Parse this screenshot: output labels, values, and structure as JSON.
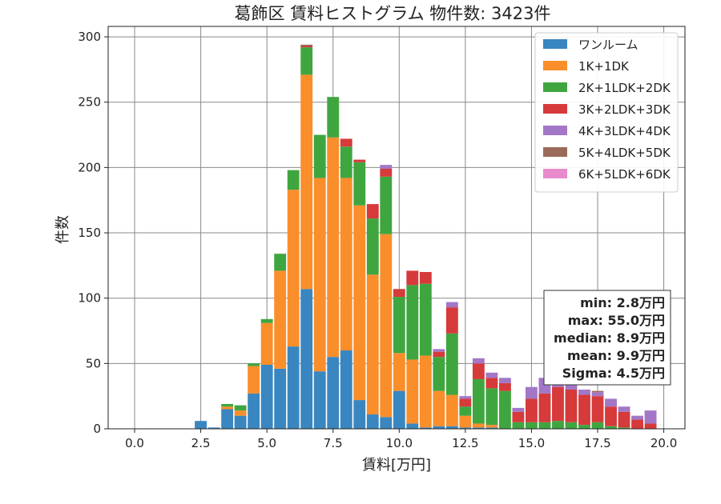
{
  "chart_data": {
    "type": "bar",
    "stacked": true,
    "title": "葛飾区 賃料ヒストグラム 物件数: 3423件",
    "xlabel": "賃料[万円]",
    "ylabel": "件数",
    "xlim": [
      -1.0,
      20.8
    ],
    "ylim": [
      0,
      308
    ],
    "xticks": [
      0.0,
      2.5,
      5.0,
      7.5,
      10.0,
      12.5,
      15.0,
      17.5,
      20.0
    ],
    "xtick_labels": [
      "0.0",
      "2.5",
      "5.0",
      "7.5",
      "10.0",
      "12.5",
      "15.0",
      "17.5",
      "20.0"
    ],
    "yticks": [
      0,
      50,
      100,
      150,
      200,
      250,
      300
    ],
    "ytick_labels": [
      "0",
      "50",
      "100",
      "150",
      "200",
      "250",
      "300"
    ],
    "grid": true,
    "legend_position": "top-right",
    "bin_width": 0.5,
    "x": [
      2.5,
      3.0,
      3.5,
      4.0,
      4.5,
      5.0,
      5.5,
      6.0,
      6.5,
      7.0,
      7.5,
      8.0,
      8.5,
      9.0,
      9.5,
      10.0,
      10.5,
      11.0,
      11.5,
      12.0,
      12.5,
      13.0,
      13.5,
      14.0,
      14.5,
      15.0,
      15.5,
      16.0,
      16.5,
      17.0,
      17.5,
      18.0,
      18.5,
      19.0,
      19.5
    ],
    "series": [
      {
        "name": "ワンルーム",
        "color": "#3a86c0",
        "values": [
          6,
          1,
          15,
          10,
          27,
          49,
          46,
          63,
          107,
          44,
          55,
          60,
          22,
          11,
          9,
          29,
          4,
          1,
          2,
          2,
          1,
          1,
          1,
          0,
          0,
          0,
          0,
          0,
          0,
          0,
          0,
          0,
          0,
          0,
          0
        ]
      },
      {
        "name": "1K+1DK",
        "color": "#f98e2b",
        "values": [
          0,
          0,
          2,
          4,
          21,
          32,
          75,
          120,
          164,
          148,
          168,
          132,
          149,
          107,
          140,
          29,
          49,
          55,
          27,
          24,
          9,
          3,
          2,
          0,
          0,
          0,
          0,
          0,
          0,
          0,
          0,
          0,
          0,
          0,
          0
        ]
      },
      {
        "name": "2K+1LDK+2DK",
        "color": "#3fa63f",
        "values": [
          0,
          0,
          2,
          4,
          2,
          3,
          13,
          15,
          21,
          33,
          31,
          24,
          33,
          43,
          44,
          43,
          57,
          55,
          26,
          47,
          7,
          34,
          28,
          29,
          5,
          5,
          5,
          6,
          5,
          3,
          5,
          2,
          1,
          0,
          0
        ]
      },
      {
        "name": "3K+2LDK+3DK",
        "color": "#d63a3a",
        "values": [
          0,
          0,
          0,
          0,
          0,
          0,
          0,
          0,
          1,
          0,
          0,
          6,
          2,
          11,
          6,
          6,
          11,
          9,
          4,
          20,
          6,
          12,
          8,
          6,
          8,
          18,
          22,
          26,
          25,
          23,
          20,
          15,
          12,
          7,
          4
        ]
      },
      {
        "name": "4K+3LDK+4DK",
        "color": "#a277c7",
        "values": [
          0,
          0,
          0,
          0,
          0,
          0,
          0,
          0,
          0,
          0,
          0,
          0,
          0,
          0,
          3,
          0,
          0,
          0,
          2,
          4,
          2,
          4,
          4,
          4,
          3,
          9,
          12,
          8,
          6,
          4,
          3,
          6,
          4,
          3,
          10
        ]
      },
      {
        "name": "5K+4LDK+5DK",
        "color": "#9b6b5a",
        "values": [
          0,
          0,
          0,
          0,
          0,
          0,
          0,
          0,
          1,
          0,
          0,
          0,
          0,
          0,
          0,
          0,
          0,
          0,
          0,
          0,
          0,
          0,
          0,
          0,
          0,
          0,
          0,
          0,
          0,
          0,
          1,
          0,
          0,
          0,
          0
        ]
      },
      {
        "name": "6K+5LDK+6DK",
        "color": "#e88acb",
        "values": [
          0,
          0,
          0,
          0,
          0,
          0,
          0,
          0,
          0,
          0,
          0,
          0,
          0,
          0,
          0,
          0,
          0,
          0,
          0,
          0,
          0,
          0,
          0,
          0,
          0,
          0,
          0,
          0,
          0,
          0,
          0,
          0,
          0,
          0,
          0
        ]
      }
    ],
    "stats_box": {
      "lines": [
        "min: 2.8万円",
        "max: 55.0万円",
        "median: 8.9万円",
        "mean: 9.9万円",
        "Sigma: 4.5万円"
      ],
      "position": "right"
    }
  }
}
